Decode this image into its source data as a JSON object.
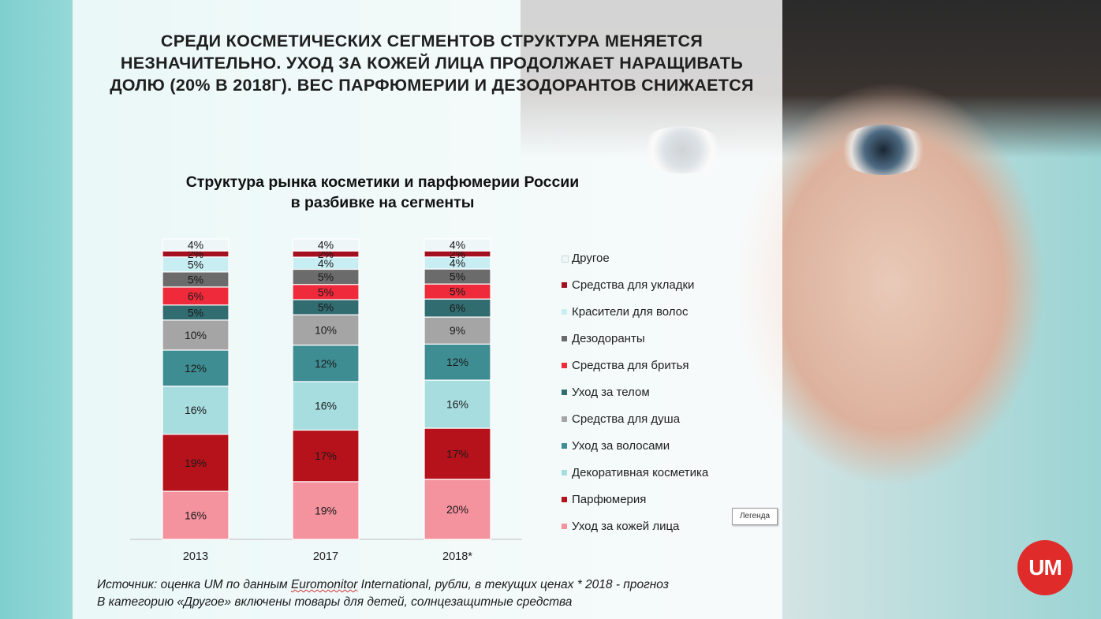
{
  "headline": [
    "СРЕДИ КОСМЕТИЧЕСКИХ СЕГМЕНТОВ СТРУКТУРА МЕНЯЕТСЯ",
    "НЕЗНАЧИТЕЛЬНО. УХОД ЗА КОЖЕЙ ЛИЦА ПРОДОЛЖАЕТ НАРАЩИВАТЬ",
    "ДОЛЮ (20% В 2018Г). ВЕС ПАРФЮМЕРИИ И ДЕЗОДОРАНТОВ СНИЖАЕТСЯ"
  ],
  "chart_data": {
    "type": "bar",
    "stacked": true,
    "percent": true,
    "title": [
      "Структура рынка косметики и парфюмерии России",
      "в разбивке на сегменты"
    ],
    "categories": [
      "2013",
      "2017",
      "2018*"
    ],
    "legend_position": "right",
    "series": [
      {
        "name": "Уход за кожей лица",
        "color": "#f4929e",
        "values": [
          16,
          19,
          20
        ]
      },
      {
        "name": "Парфюмерия",
        "color": "#b5121b",
        "values": [
          19,
          17,
          17
        ]
      },
      {
        "name": "Декоративная косметика",
        "color": "#a8dde0",
        "values": [
          16,
          16,
          16
        ]
      },
      {
        "name": "Уход за волосами",
        "color": "#3e8d92",
        "values": [
          12,
          12,
          12
        ]
      },
      {
        "name": "Средства для душа",
        "color": "#a5a5a5",
        "values": [
          10,
          10,
          9
        ]
      },
      {
        "name": "Уход за телом",
        "color": "#316c71",
        "values": [
          5,
          5,
          6
        ]
      },
      {
        "name": "Средства для бритья",
        "color": "#ee2a3b",
        "values": [
          6,
          5,
          5
        ]
      },
      {
        "name": "Дезодоранты",
        "color": "#6b6b6b",
        "values": [
          5,
          5,
          5
        ]
      },
      {
        "name": "Красители для волос",
        "color": "#c8eef4",
        "values": [
          5,
          4,
          4
        ]
      },
      {
        "name": "Средства для укладки",
        "color": "#a31020",
        "values": [
          2,
          2,
          2
        ]
      },
      {
        "name": "Другое",
        "color": "#eef6f7",
        "values": [
          4,
          4,
          4
        ]
      }
    ],
    "labels": [
      [
        "16%",
        "19%",
        "20%"
      ],
      [
        "19%",
        "17%",
        "17%"
      ],
      [
        "16%",
        "16%",
        "16%"
      ],
      [
        "12%",
        "12%",
        "12%"
      ],
      [
        "10%",
        "10%",
        "9%"
      ],
      [
        "5%",
        "5%",
        "6%"
      ],
      [
        "6%",
        "5%",
        "5%"
      ],
      [
        "5%",
        "5%",
        "5%"
      ],
      [
        "5%",
        "4%",
        "4%"
      ],
      [
        "2%",
        "2%",
        "2%"
      ],
      [
        "4%",
        "4%",
        "4%"
      ]
    ]
  },
  "legend_tag": "Легенда",
  "source": {
    "line1_a": "Источник: оценка UM по данным ",
    "line1_b": "Euromonitor",
    "line1_c": " International, рубли, в текущих ценах * 2018 - прогноз",
    "line2": "В категорию «Другое» включены товары для детей, солнцезащитные средства"
  },
  "logo": "UM"
}
